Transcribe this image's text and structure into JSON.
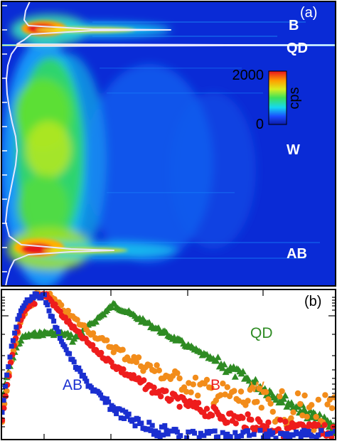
{
  "colors": {
    "background": "#ffffff",
    "heatmap_bg": "#0a2bd6",
    "profile_line": "#e8e8ff",
    "qd_line": "#ffe07a",
    "AB": "#1a2fd0",
    "B": "#ee1c1c",
    "W": "#f28c1a",
    "QD": "#2e8b23"
  },
  "chart_data": [
    {
      "panel": "(a)",
      "type": "heatmap",
      "colorbar": {
        "min": "0",
        "max": "2000",
        "label": "cps"
      },
      "region_labels": [
        "B",
        "QD",
        "W",
        "AB"
      ],
      "grid": false
    },
    {
      "panel": "(b)",
      "type": "scatter",
      "yscale": "log",
      "grid": false,
      "series": [
        {
          "name": "AB",
          "color": "#1a2fd0",
          "marker": "square"
        },
        {
          "name": "B",
          "color": "#ee1c1c",
          "marker": "circle"
        },
        {
          "name": "W",
          "color": "#f28c1a",
          "marker": "circle"
        },
        {
          "name": "QD",
          "color": "#2e8b23",
          "marker": "triangle"
        }
      ]
    }
  ]
}
